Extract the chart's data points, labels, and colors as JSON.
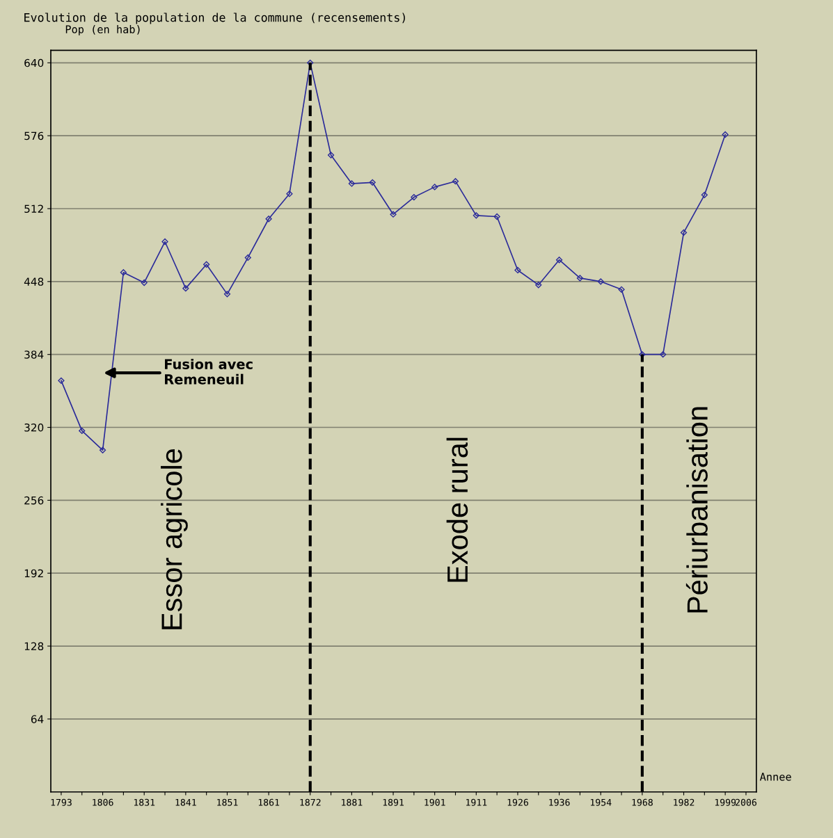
{
  "chart_data": {
    "type": "line",
    "title": "Evolution de la population de la commune (recensements)",
    "ylabel": "Pop (en hab)",
    "xlabel": "Annee",
    "categories": [
      "1793",
      null,
      "1806",
      null,
      "1831",
      null,
      "1841",
      null,
      "1851",
      null,
      "1861",
      null,
      "1872",
      null,
      "1881",
      null,
      "1891",
      null,
      "1901",
      null,
      "1911",
      null,
      "1926",
      null,
      "1936",
      null,
      "1954",
      null,
      "1968",
      null,
      "1982",
      null,
      "1999",
      "2006"
    ],
    "series": [
      {
        "color": "#2b2b9a",
        "values": [
          361,
          317,
          300,
          456,
          447,
          483,
          442,
          463,
          437,
          469,
          503,
          525,
          640,
          559,
          534,
          535,
          507,
          522,
          531,
          536,
          506,
          505,
          458,
          445,
          467,
          451,
          448,
          441,
          384,
          384,
          491,
          524,
          577,
          null
        ]
      }
    ],
    "ylim": [
      0,
      651
    ],
    "yticks": [
      64,
      128,
      192,
      256,
      320,
      384,
      448,
      512,
      576,
      640
    ],
    "grid": "y",
    "marker": "diamond",
    "line_style": "solid",
    "ref_lines": [
      {
        "axis": "x",
        "value": "1872",
        "color": "#000000",
        "line_style": "dashed"
      },
      {
        "axis": "x",
        "value": "1968",
        "color": "#000000",
        "line_style": "dashed"
      }
    ],
    "annotations": [
      "Fusion avec\nRemeneuil",
      "Essor agricole",
      "Exode rural",
      "Périurbanisation"
    ]
  }
}
